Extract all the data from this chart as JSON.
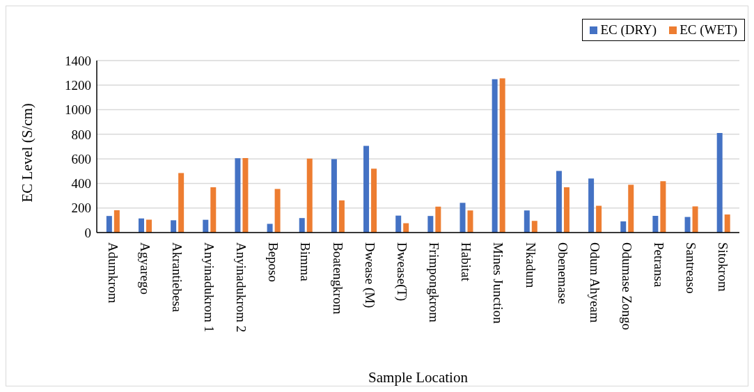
{
  "chart_data": {
    "type": "bar",
    "xlabel": "Sample Location",
    "ylabel": "EC Level (S/cm)",
    "categories": [
      "Adumkrom",
      "Agyarego",
      "Akrantiebesa",
      "Anyinadukrom 1",
      "Anyinadukrom 2",
      "Beposo",
      "Bimma",
      "Boatengkrom",
      "Dwease (M)",
      "Dwease(T)",
      "Frimpongkrom",
      "Habitat",
      "Mines Junction",
      "Nkadum",
      "Obenemase",
      "Odum Ahyeam",
      "Odumase Zongo",
      "Petransa",
      "Santreaso",
      "Sitokrom"
    ],
    "series": [
      {
        "name": "EC (DRY)",
        "color": "#4472c4",
        "values": [
          135,
          115,
          100,
          104,
          605,
          71,
          118,
          598,
          705,
          138,
          135,
          242,
          1249,
          180,
          502,
          440,
          91,
          136,
          127,
          811
        ]
      },
      {
        "name": "EC (WET)",
        "color": "#ed7d31",
        "values": [
          182,
          105,
          485,
          369,
          607,
          355,
          602,
          262,
          520,
          76,
          211,
          180,
          1255,
          95,
          369,
          218,
          389,
          418,
          213,
          147
        ]
      }
    ],
    "ylim": [
      0,
      1400
    ],
    "yticks": [
      0,
      200,
      400,
      600,
      800,
      1000,
      1200,
      1400
    ],
    "grid": "y",
    "legend": "top right"
  }
}
